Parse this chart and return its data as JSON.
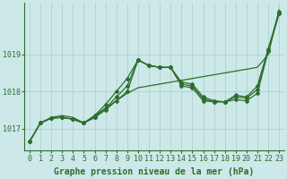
{
  "background_color": "#cce8e8",
  "grid_color": "#aacccc",
  "line_color": "#2d6e2d",
  "xlabel": "Graphe pression niveau de la mer (hPa)",
  "xlabel_fontsize": 7,
  "tick_fontsize": 6,
  "ylim": [
    1016.4,
    1020.4
  ],
  "yticks": [
    1017,
    1018,
    1019
  ],
  "xlim": [
    -0.5,
    23.5
  ],
  "series": {
    "s1": [
      1016.65,
      1017.15,
      1017.3,
      1017.35,
      1017.3,
      1017.15,
      1017.35,
      1017.55,
      1017.75,
      1017.95,
      1018.1,
      1018.15,
      1018.2,
      1018.25,
      1018.3,
      1018.35,
      1018.4,
      1018.45,
      1018.5,
      1018.55,
      1018.6,
      1018.65,
      1019.0,
      1020.2
    ],
    "s2": [
      1016.65,
      1017.15,
      1017.28,
      1017.3,
      1017.25,
      1017.15,
      1017.3,
      1017.5,
      1017.75,
      1018.0,
      1018.85,
      1018.7,
      1018.65,
      1018.65,
      1018.15,
      1018.1,
      1017.75,
      1017.72,
      1017.72,
      1017.78,
      1017.75,
      1017.95,
      1019.1,
      1020.1
    ],
    "s3": [
      1016.65,
      1017.15,
      1017.28,
      1017.3,
      1017.25,
      1017.15,
      1017.3,
      1017.55,
      1017.85,
      1018.15,
      1018.85,
      1018.7,
      1018.65,
      1018.65,
      1018.2,
      1018.15,
      1017.8,
      1017.72,
      1017.72,
      1017.85,
      1017.82,
      1018.05,
      1019.1,
      1020.1
    ],
    "s4": [
      1016.65,
      1017.15,
      1017.28,
      1017.3,
      1017.25,
      1017.15,
      1017.35,
      1017.65,
      1018.0,
      1018.35,
      1018.85,
      1018.7,
      1018.65,
      1018.65,
      1018.25,
      1018.2,
      1017.85,
      1017.75,
      1017.72,
      1017.9,
      1017.85,
      1018.15,
      1019.15,
      1020.15
    ]
  }
}
